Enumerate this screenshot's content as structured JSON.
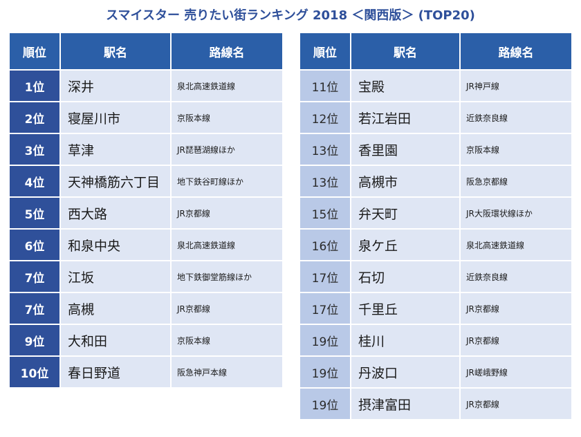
{
  "title": "スマイスター 売りたい街ランキング 2018 ＜関西版＞ (TOP20)",
  "headers": {
    "rank": "順位",
    "station": "駅名",
    "line": "路線名"
  },
  "left_rows": [
    {
      "rank": "1位",
      "station": "深井",
      "line": "泉北高速鉄道線"
    },
    {
      "rank": "2位",
      "station": "寝屋川市",
      "line": "京阪本線"
    },
    {
      "rank": "3位",
      "station": "草津",
      "line": "JR琵琶湖線ほか"
    },
    {
      "rank": "4位",
      "station": "天神橋筋六丁目",
      "line": "地下鉄谷町線ほか"
    },
    {
      "rank": "5位",
      "station": "西大路",
      "line": "JR京都線"
    },
    {
      "rank": "6位",
      "station": "和泉中央",
      "line": "泉北高速鉄道線"
    },
    {
      "rank": "7位",
      "station": "江坂",
      "line": "地下鉄御堂筋線ほか"
    },
    {
      "rank": "7位",
      "station": "高槻",
      "line": "JR京都線"
    },
    {
      "rank": "9位",
      "station": "大和田",
      "line": "京阪本線"
    },
    {
      "rank": "10位",
      "station": "春日野道",
      "line": "阪急神戸本線"
    }
  ],
  "right_rows": [
    {
      "rank": "11位",
      "station": "宝殿",
      "line": "JR神戸線"
    },
    {
      "rank": "12位",
      "station": "若江岩田",
      "line": "近鉄奈良線"
    },
    {
      "rank": "13位",
      "station": "香里園",
      "line": "京阪本線"
    },
    {
      "rank": "13位",
      "station": "高槻市",
      "line": "阪急京都線"
    },
    {
      "rank": "15位",
      "station": "弁天町",
      "line": "JR大阪環状線ほか"
    },
    {
      "rank": "16位",
      "station": "泉ケ丘",
      "line": "泉北高速鉄道線"
    },
    {
      "rank": "17位",
      "station": "石切",
      "line": "近鉄奈良線"
    },
    {
      "rank": "17位",
      "station": "千里丘",
      "line": "JR京都線"
    },
    {
      "rank": "19位",
      "station": "桂川",
      "line": "JR京都線"
    },
    {
      "rank": "19位",
      "station": "丹波口",
      "line": "JR嵯峨野線"
    },
    {
      "rank": "19位",
      "station": "摂津富田",
      "line": "JR京都線"
    }
  ]
}
